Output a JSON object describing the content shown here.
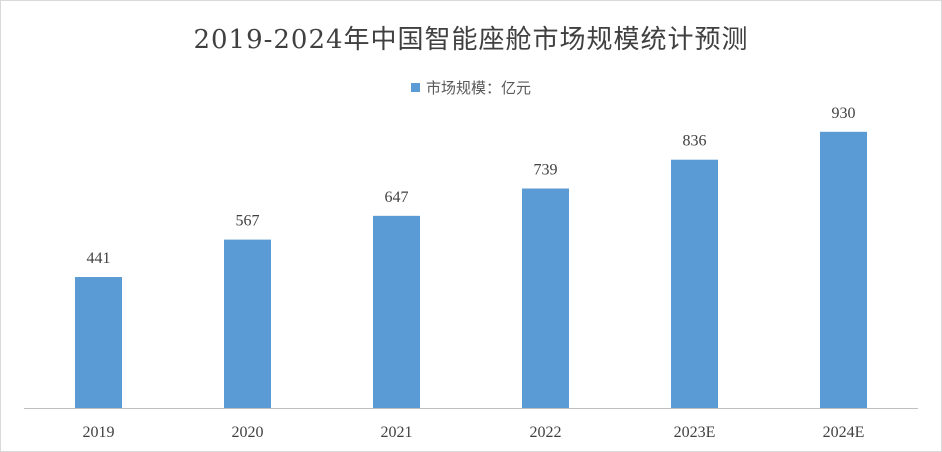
{
  "chart_data": {
    "type": "bar",
    "title": "2019-2024年中国智能座舱市场规模统计预测",
    "categories": [
      "2019",
      "2020",
      "2021",
      "2022",
      "2023E",
      "2024E"
    ],
    "series": [
      {
        "name": "市场规模：亿元",
        "values": [
          441,
          567,
          647,
          739,
          836,
          930
        ]
      }
    ],
    "value_labels": [
      "441",
      "567",
      "647",
      "739",
      "836",
      "930"
    ],
    "xlabel": "",
    "ylabel": "",
    "ylim": [
      0,
      1050
    ],
    "legend_position": "top",
    "grid": false,
    "bar_color": "#5b9bd5"
  }
}
